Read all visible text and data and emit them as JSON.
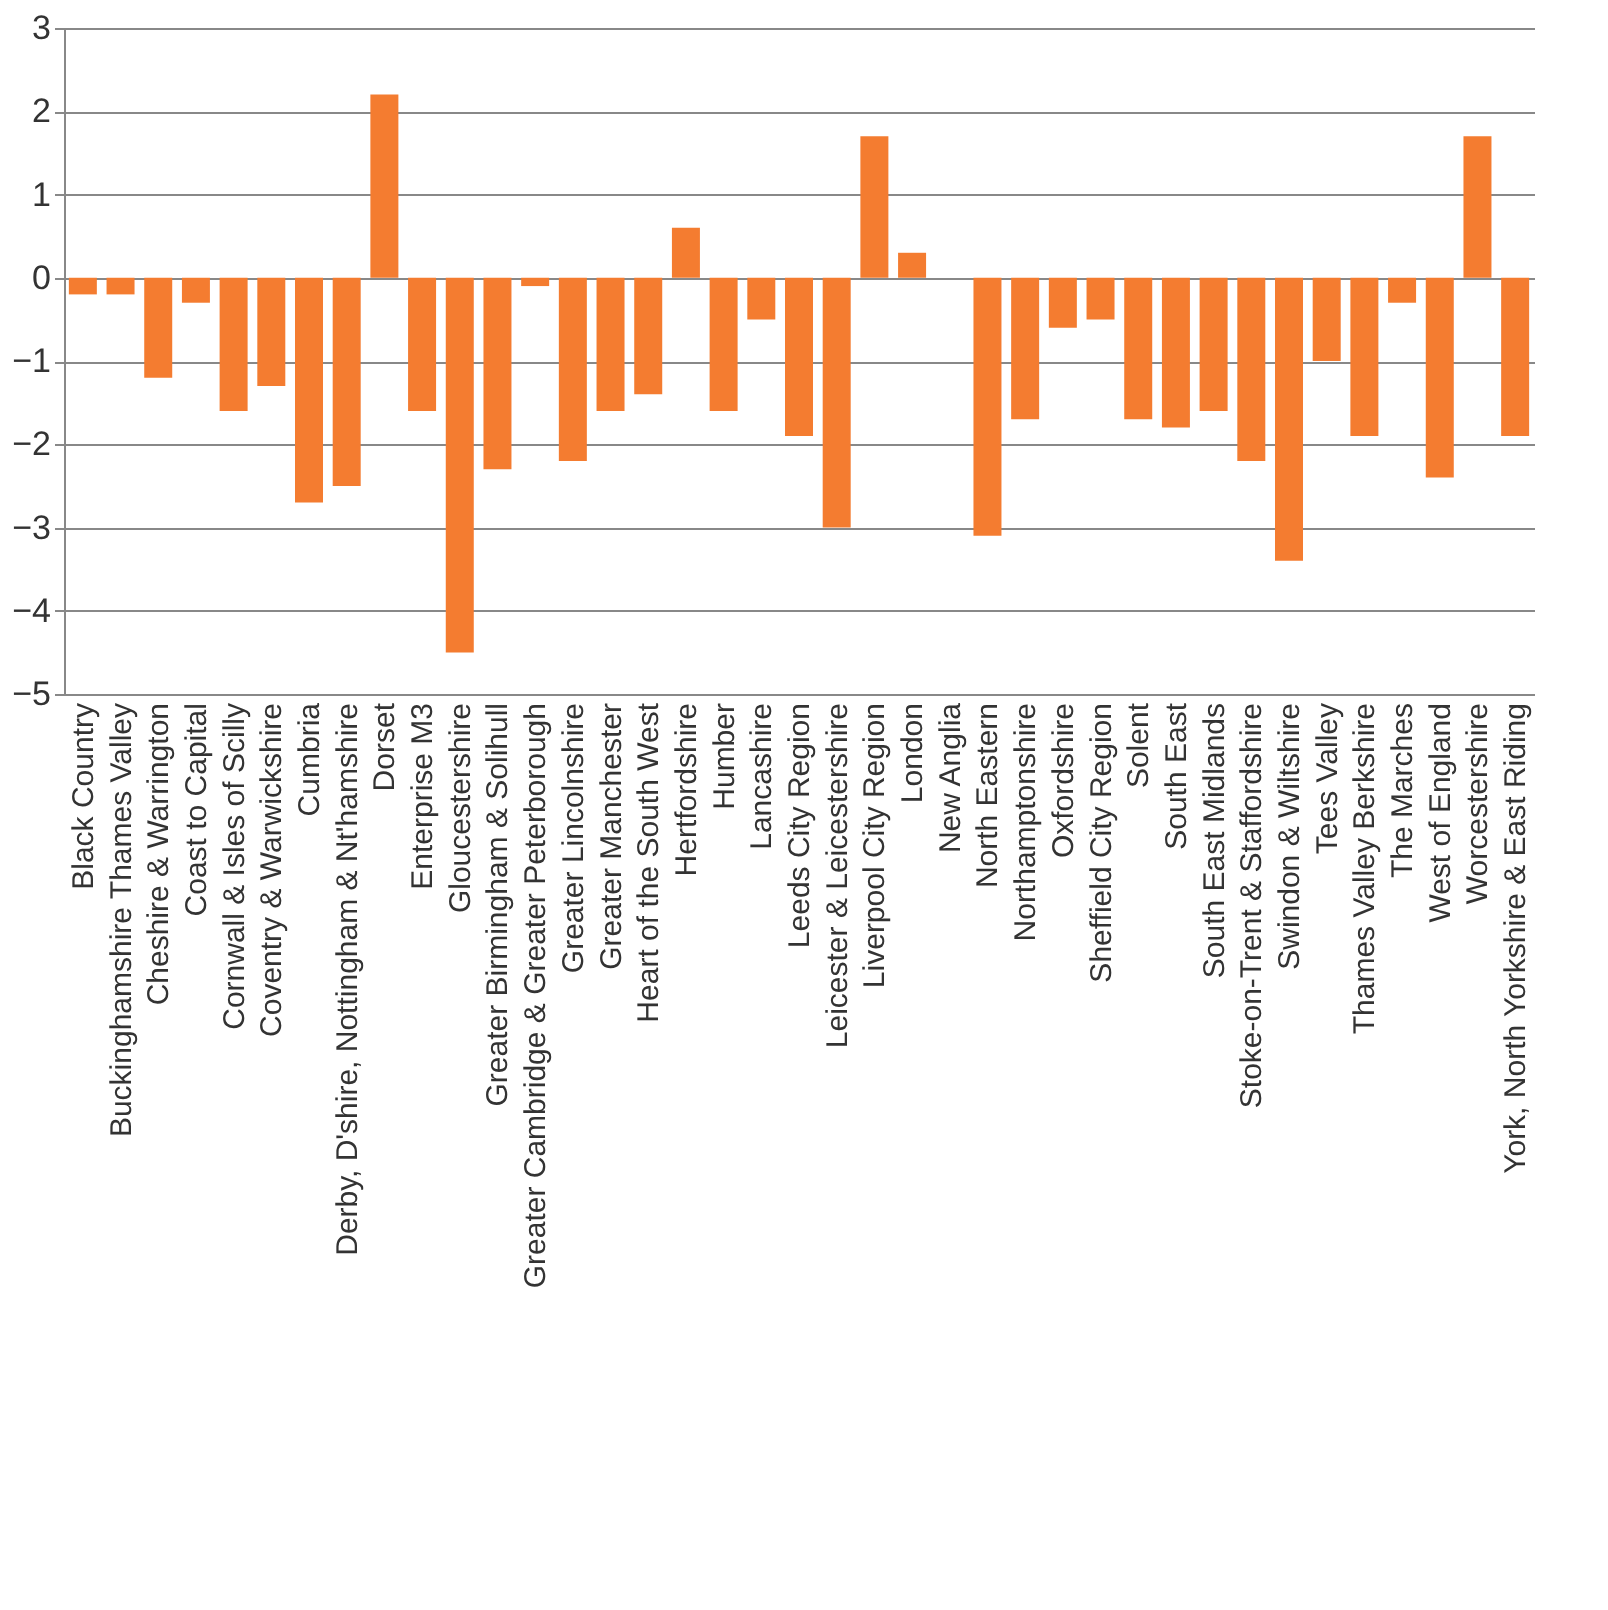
{
  "chart_data": {
    "type": "bar",
    "categories": [
      "Black Country",
      "Buckinghamshire Thames Valley",
      "Cheshire & Warrington",
      "Coast to Capital",
      "Cornwall & Isles of Scilly",
      "Coventry & Warwickshire",
      "Cumbria",
      "Derby, D'shire, Nottingham & Nt'hamshire",
      "Dorset",
      "Enterprise M3",
      "Gloucestershire",
      "Greater Birmingham & Solihull",
      "Greater Cambridge & Greater Peterborough",
      "Greater Lincolnshire",
      "Greater Manchester",
      "Heart of the South West",
      "Hertfordshire",
      "Humber",
      "Lancashire",
      "Leeds City Region",
      "Leicester & Leicestershire",
      "Liverpool City Region",
      "London",
      "New Anglia",
      "North Eastern",
      "Northamptonshire",
      "Oxfordshire",
      "Sheffield City Region",
      "Solent",
      "South East",
      "South East Midlands",
      "Stoke-on-Trent & Staffordshire",
      "Swindon & Wiltshire",
      "Tees Valley",
      "Thames Valley Berkshire",
      "The Marches",
      "West of England",
      "Worcestershire",
      "York, North Yorkshire & East Riding"
    ],
    "values": [
      -0.2,
      -0.2,
      -1.2,
      -0.3,
      -1.6,
      -1.3,
      -2.7,
      -2.5,
      2.2,
      -1.6,
      -4.5,
      -2.3,
      -0.1,
      -2.2,
      -1.6,
      -1.4,
      0.6,
      -1.6,
      -0.5,
      -1.9,
      -3.0,
      1.7,
      0.3,
      0,
      -3.1,
      -1.7,
      -0.6,
      -0.5,
      -1.7,
      -1.8,
      -1.6,
      -2.2,
      -3.4,
      -1.0,
      -1.9,
      -0.3,
      -2.4,
      1.7,
      -1.9
    ],
    "color": "#f47c30",
    "ylim": [
      -5,
      3
    ],
    "yticks": [
      -5,
      -4,
      -3,
      -2,
      -1,
      0,
      1,
      2,
      3
    ],
    "grid": "y"
  }
}
